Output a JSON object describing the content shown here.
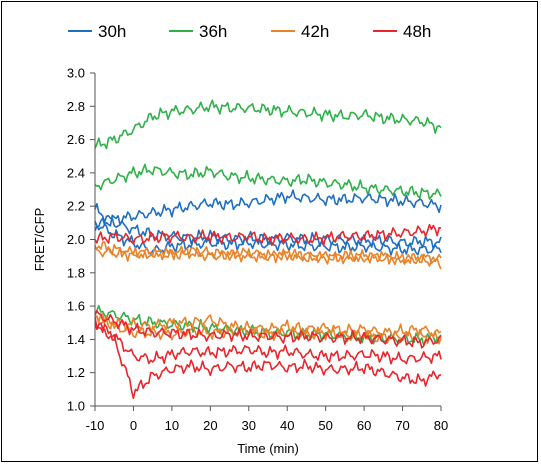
{
  "chart_data": {
    "type": "line",
    "title": "",
    "xlabel": "Time (min)",
    "ylabel": "FRET/CFP",
    "xlim": [
      -10,
      80
    ],
    "ylim": [
      1.0,
      3.0
    ],
    "xticks": [
      -10,
      0,
      10,
      20,
      30,
      40,
      50,
      60,
      70,
      80
    ],
    "yticks": [
      1.0,
      1.2,
      1.4,
      1.6,
      1.8,
      2.0,
      2.2,
      2.4,
      2.6,
      2.8,
      3.0
    ],
    "ytick_labels": [
      "1.0",
      "1.2",
      "1.4",
      "1.6",
      "1.8",
      "2.0",
      "2.2",
      "2.4",
      "2.6",
      "2.8",
      "3.0"
    ],
    "grid": false,
    "legend_position": "top",
    "legend": [
      {
        "label": "30h",
        "color": "#1f6fc1"
      },
      {
        "label": "36h",
        "color": "#2fb14a"
      },
      {
        "label": "42h",
        "color": "#e8832a"
      },
      {
        "label": "48h",
        "color": "#e8262b"
      }
    ],
    "x": [
      -10,
      -5,
      0,
      5,
      10,
      15,
      20,
      25,
      30,
      35,
      40,
      45,
      50,
      55,
      60,
      65,
      70,
      75,
      80
    ],
    "series": [
      {
        "group": "36h",
        "color": "#2fb14a",
        "values": [
          2.56,
          2.6,
          2.66,
          2.74,
          2.77,
          2.78,
          2.8,
          2.79,
          2.79,
          2.78,
          2.77,
          2.76,
          2.75,
          2.74,
          2.75,
          2.73,
          2.72,
          2.71,
          2.67
        ]
      },
      {
        "group": "36h",
        "color": "#2fb14a",
        "values": [
          2.32,
          2.36,
          2.4,
          2.42,
          2.4,
          2.39,
          2.41,
          2.38,
          2.37,
          2.36,
          2.35,
          2.36,
          2.34,
          2.33,
          2.31,
          2.3,
          2.29,
          2.28,
          2.27
        ]
      },
      {
        "group": "30h",
        "color": "#1f6fc1",
        "values": [
          2.08,
          2.12,
          2.14,
          2.16,
          2.18,
          2.2,
          2.22,
          2.21,
          2.22,
          2.24,
          2.26,
          2.25,
          2.24,
          2.24,
          2.25,
          2.24,
          2.23,
          2.22,
          2.2
        ]
      },
      {
        "group": "30h",
        "color": "#1f6fc1",
        "values": [
          2.18,
          2.1,
          2.06,
          2.03,
          2.02,
          2.01,
          2.02,
          2.0,
          2.01,
          2.0,
          2.01,
          2.0,
          2.0,
          2.0,
          1.99,
          2.0,
          1.98,
          1.99,
          1.98
        ]
      },
      {
        "group": "30h",
        "color": "#1f6fc1",
        "values": [
          2.1,
          2.03,
          1.98,
          1.93,
          1.96,
          1.97,
          1.98,
          1.97,
          1.98,
          1.97,
          1.97,
          1.96,
          1.96,
          1.95,
          1.96,
          1.95,
          1.94,
          1.94,
          1.94
        ]
      },
      {
        "group": "48h",
        "color": "#e8262b",
        "values": [
          2.0,
          2.02,
          2.0,
          2.01,
          2.02,
          2.01,
          2.02,
          2.01,
          2.02,
          2.0,
          2.01,
          2.0,
          2.01,
          2.02,
          2.02,
          2.03,
          2.04,
          2.05,
          2.07
        ]
      },
      {
        "group": "42h",
        "color": "#e8832a",
        "values": [
          1.93,
          1.92,
          1.91,
          1.92,
          1.91,
          1.92,
          1.9,
          1.91,
          1.9,
          1.9,
          1.91,
          1.89,
          1.9,
          1.89,
          1.9,
          1.89,
          1.88,
          1.89,
          1.88
        ]
      },
      {
        "group": "42h",
        "color": "#e8832a",
        "values": [
          1.97,
          1.94,
          1.92,
          1.91,
          1.92,
          1.93,
          1.92,
          1.91,
          1.92,
          1.9,
          1.91,
          1.9,
          1.89,
          1.9,
          1.89,
          1.9,
          1.88,
          1.88,
          1.86
        ]
      },
      {
        "group": "36h",
        "color": "#2fb14a",
        "values": [
          1.57,
          1.55,
          1.52,
          1.5,
          1.49,
          1.48,
          1.47,
          1.46,
          1.45,
          1.44,
          1.44,
          1.43,
          1.43,
          1.42,
          1.41,
          1.41,
          1.4,
          1.4,
          1.42
        ]
      },
      {
        "group": "42h",
        "color": "#e8832a",
        "values": [
          1.52,
          1.5,
          1.49,
          1.48,
          1.5,
          1.5,
          1.52,
          1.48,
          1.47,
          1.46,
          1.48,
          1.46,
          1.47,
          1.45,
          1.46,
          1.44,
          1.45,
          1.46,
          1.43
        ]
      },
      {
        "group": "42h",
        "color": "#e8832a",
        "values": [
          1.55,
          1.48,
          1.44,
          1.44,
          1.43,
          1.45,
          1.44,
          1.44,
          1.45,
          1.43,
          1.44,
          1.43,
          1.44,
          1.42,
          1.43,
          1.41,
          1.42,
          1.42,
          1.41
        ]
      },
      {
        "group": "48h",
        "color": "#e8262b",
        "values": [
          1.55,
          1.51,
          1.46,
          1.44,
          1.44,
          1.43,
          1.42,
          1.43,
          1.42,
          1.42,
          1.41,
          1.42,
          1.41,
          1.41,
          1.41,
          1.4,
          1.39,
          1.38,
          1.4
        ]
      },
      {
        "group": "48h",
        "color": "#e8262b",
        "values": [
          1.5,
          1.42,
          1.3,
          1.28,
          1.31,
          1.33,
          1.32,
          1.33,
          1.34,
          1.32,
          1.33,
          1.31,
          1.3,
          1.3,
          1.31,
          1.3,
          1.28,
          1.29,
          1.3
        ]
      },
      {
        "group": "48h",
        "color": "#e8262b",
        "values": [
          1.5,
          1.4,
          1.08,
          1.18,
          1.22,
          1.24,
          1.22,
          1.24,
          1.23,
          1.25,
          1.23,
          1.24,
          1.22,
          1.22,
          1.23,
          1.2,
          1.17,
          1.15,
          1.2
        ]
      }
    ]
  }
}
